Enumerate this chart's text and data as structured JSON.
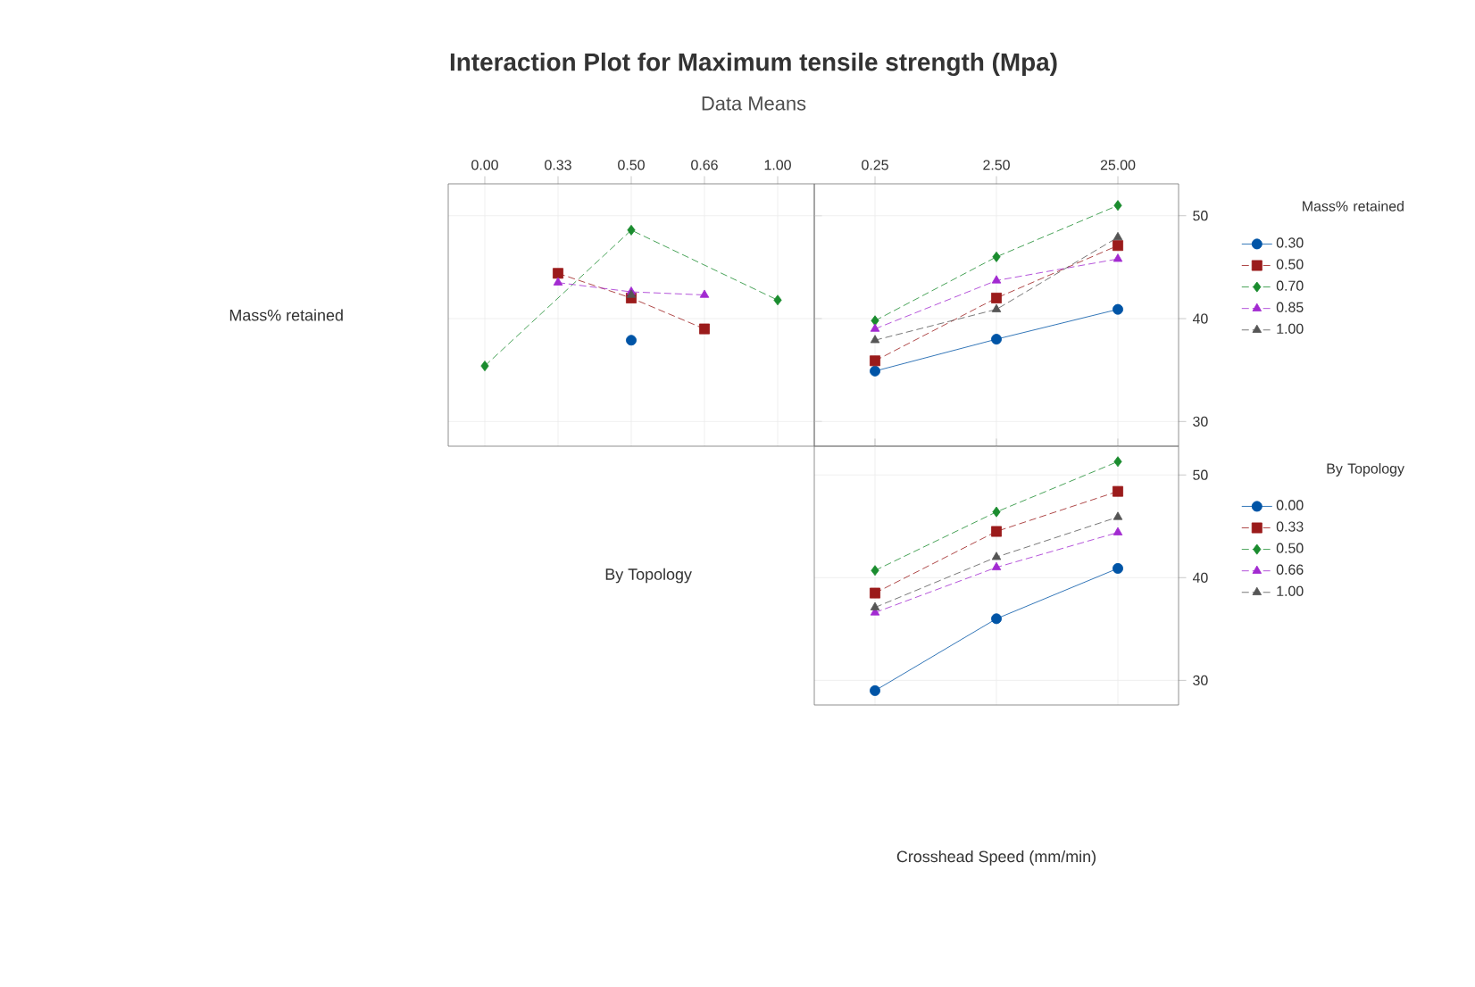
{
  "chart_data": [
    {
      "type": "line",
      "title": "Interaction Plot for Maximum tensile strength (Mpa)",
      "subtitle": "Data Means",
      "ylabel": "Mass% retained",
      "categories": [
        "0.00",
        "0.33",
        "0.50",
        "0.66",
        "1.00"
      ],
      "ylim": [
        27.6,
        53.1
      ],
      "yticks": [
        30,
        40,
        50
      ],
      "grid": true,
      "tick_labels": "x",
      "series": [
        {
          "color": "#0054a6",
          "marker": "circle",
          "line_style": "solid",
          "values": [
            null,
            null,
            37.9,
            null,
            null
          ]
        },
        {
          "color": "#9b1b1b",
          "marker": "square",
          "line_style": "dashed",
          "values": [
            null,
            44.4,
            42.0,
            39.0,
            null
          ]
        },
        {
          "color": "#1a8c2e",
          "marker": "diamond",
          "line_style": "dashed",
          "values": [
            35.4,
            null,
            48.6,
            null,
            41.8
          ]
        },
        {
          "color": "#a22ad1",
          "marker": "triangle",
          "line_style": "dashed",
          "values": [
            null,
            43.5,
            42.6,
            42.3,
            null
          ]
        },
        {
          "color": "#555555",
          "marker": "triangle",
          "line_style": "dashed",
          "values": [
            null,
            null,
            42.3,
            null,
            null
          ]
        }
      ]
    },
    {
      "type": "line",
      "legend_title": "Mass% retained",
      "legend": "right",
      "categories": [
        "0.25",
        "2.50",
        "25.00"
      ],
      "ylim": [
        27.6,
        53.1
      ],
      "yticks": [
        30,
        40,
        50
      ],
      "grid": true,
      "series": [
        {
          "name": "0.30",
          "color": "#0054a6",
          "marker": "circle",
          "line_style": "solid",
          "values": [
            34.9,
            38.0,
            40.9
          ]
        },
        {
          "name": "0.50",
          "color": "#9b1b1b",
          "marker": "square",
          "line_style": "dashed",
          "values": [
            35.9,
            42.0,
            47.1
          ]
        },
        {
          "name": "0.70",
          "color": "#1a8c2e",
          "marker": "diamond",
          "line_style": "dashed",
          "values": [
            39.8,
            46.0,
            51.0
          ]
        },
        {
          "name": "0.85",
          "color": "#a22ad1",
          "marker": "triangle",
          "line_style": "dashed",
          "values": [
            39.0,
            43.7,
            45.8
          ]
        },
        {
          "name": "1.00",
          "color": "#555555",
          "marker": "triangle",
          "line_style": "dashed",
          "values": [
            37.9,
            40.9,
            47.9
          ]
        }
      ]
    },
    {
      "type": "line",
      "legend_title": "By Topology",
      "legend": "right",
      "xlabel": "Crosshead Speed (mm/min)",
      "ylabel": "By Topology",
      "categories": [
        "0.25",
        "2.50",
        "25.00"
      ],
      "ylim": [
        27.6,
        52.8
      ],
      "yticks": [
        30,
        40,
        50
      ],
      "grid": true,
      "tick_labels": "y",
      "series": [
        {
          "name": "0.00",
          "color": "#0054a6",
          "marker": "circle",
          "line_style": "solid",
          "values": [
            29.0,
            36.0,
            40.9
          ]
        },
        {
          "name": "0.33",
          "color": "#9b1b1b",
          "marker": "square",
          "line_style": "dashed",
          "values": [
            38.5,
            44.5,
            48.4
          ]
        },
        {
          "name": "0.50",
          "color": "#1a8c2e",
          "marker": "diamond",
          "line_style": "dashed",
          "values": [
            40.7,
            46.4,
            51.3
          ]
        },
        {
          "name": "0.66",
          "color": "#a22ad1",
          "marker": "triangle",
          "line_style": "dashed",
          "values": [
            36.6,
            41.0,
            44.4
          ]
        },
        {
          "name": "1.00",
          "color": "#555555",
          "marker": "triangle",
          "line_style": "dashed",
          "values": [
            37.1,
            42.0,
            45.9
          ]
        }
      ]
    }
  ]
}
